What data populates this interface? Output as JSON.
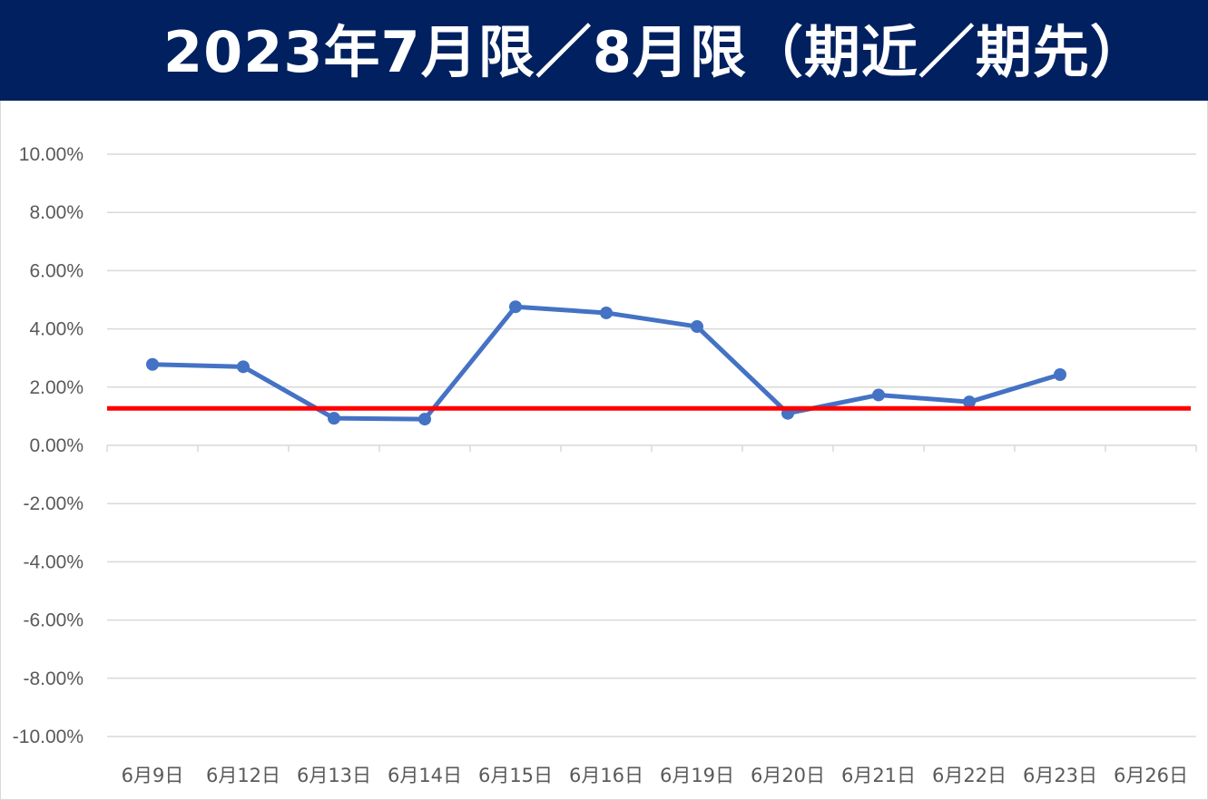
{
  "title": "2023年7月限／8月限（期近／期先）",
  "colors": {
    "title_bg": "#002060",
    "title_text": "#ffffff",
    "series_line": "#4472c4",
    "reference_line": "#ff0000",
    "gridline": "#d9d9d9",
    "axis_text": "#595959"
  },
  "chart_data": {
    "type": "line",
    "categories": [
      "6月9日",
      "6月12日",
      "6月13日",
      "6月14日",
      "6月15日",
      "6月16日",
      "6月19日",
      "6月20日",
      "6月21日",
      "6月22日",
      "6月23日",
      "6月26日"
    ],
    "series": [
      {
        "values": [
          2.78,
          2.7,
          0.93,
          0.9,
          4.76,
          4.55,
          4.08,
          1.1,
          1.73,
          1.49,
          2.43,
          null
        ]
      }
    ],
    "reference_line": {
      "value": 1.27
    },
    "ylim": [
      -10,
      10
    ],
    "y_step": 2,
    "y_tick_labels": [
      "10.00%",
      "8.00%",
      "6.00%",
      "4.00%",
      "2.00%",
      "0.00%",
      "-2.00%",
      "-4.00%",
      "-6.00%",
      "-8.00%",
      "-10.00%"
    ],
    "grid": true,
    "legend": "none"
  }
}
